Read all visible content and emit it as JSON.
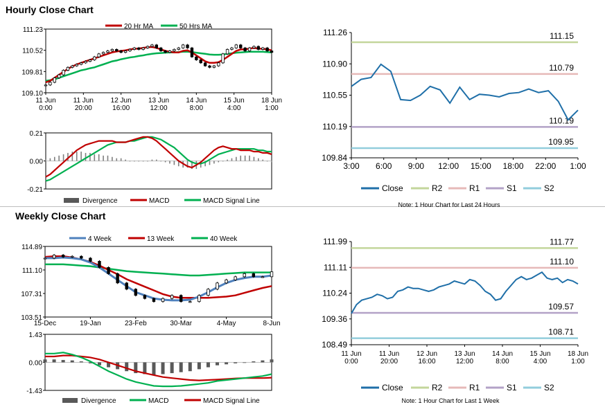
{
  "titles": {
    "hourly": "Hourly Close Chart",
    "weekly": "Weekly Close Chart"
  },
  "colors": {
    "price": "#000000",
    "ma_red": "#c00000",
    "ma_green": "#00b050",
    "ma_blue": "#4f81bd",
    "divergence": "#7f7f7f",
    "close": "#1f6fa8",
    "r2": "#c3d69b",
    "r1": "#e6b9b8",
    "s1": "#b3a2c7",
    "s2": "#92cddc"
  },
  "chart_data": [
    {
      "id": "hourly_price",
      "type": "line",
      "title": "",
      "ylim": [
        109.1,
        111.23
      ],
      "y_ticks": [
        "111.23",
        "110.52",
        "109.81",
        "109.10"
      ],
      "x_ticks": [
        "11 Jun\n0:00",
        "11 Jun\n20:00",
        "12 Jun\n16:00",
        "13 Jun\n12:00",
        "14 Jun\n8:00",
        "15 Jun\n4:00",
        "18 Jun\n1:00"
      ],
      "legend": [
        "20 Hr MA",
        "50 Hrs MA"
      ],
      "series": [
        {
          "name": "Close",
          "values": [
            109.36,
            109.45,
            109.6,
            109.7,
            109.85,
            109.95,
            110.0,
            110.05,
            110.1,
            110.15,
            110.2,
            110.3,
            110.4,
            110.45,
            110.5,
            110.55,
            110.5,
            110.45,
            110.5,
            110.55,
            110.6,
            110.55,
            110.6,
            110.65,
            110.7,
            110.6,
            110.5,
            110.45,
            110.5,
            110.55,
            110.6,
            110.7,
            110.6,
            110.3,
            110.2,
            110.1,
            110.0,
            109.95,
            110.0,
            110.1,
            110.4,
            110.55,
            110.6,
            110.7,
            110.6,
            110.5,
            110.6,
            110.65,
            110.55,
            110.6,
            110.5,
            110.45
          ]
        },
        {
          "name": "20 Hr MA",
          "values": [
            109.45,
            109.5,
            109.6,
            109.7,
            109.8,
            109.9,
            109.98,
            110.05,
            110.1,
            110.15,
            110.2,
            110.25,
            110.3,
            110.35,
            110.4,
            110.45,
            110.48,
            110.5,
            110.52,
            110.55,
            110.57,
            110.58,
            110.6,
            110.62,
            110.63,
            110.6,
            110.55,
            110.5,
            110.47,
            110.45,
            110.45,
            110.5,
            110.52,
            110.45,
            110.35,
            110.25,
            110.15,
            110.1,
            110.1,
            110.12,
            110.2,
            110.3,
            110.4,
            110.5,
            110.55,
            110.55,
            110.58,
            110.6,
            110.58,
            110.57,
            110.55,
            110.52
          ]
        },
        {
          "name": "50 Hrs MA",
          "values": [
            109.5,
            109.52,
            109.55,
            109.6,
            109.65,
            109.7,
            109.75,
            109.8,
            109.85,
            109.88,
            109.92,
            109.95,
            110.0,
            110.05,
            110.1,
            110.15,
            110.18,
            110.22,
            110.25,
            110.28,
            110.3,
            110.33,
            110.35,
            110.38,
            110.4,
            110.42,
            110.43,
            110.44,
            110.45,
            110.45,
            110.46,
            110.47,
            110.47,
            110.46,
            110.44,
            110.42,
            110.4,
            110.38,
            110.37,
            110.37,
            110.38,
            110.4,
            110.42,
            110.44,
            110.45,
            110.46,
            110.47,
            110.47,
            110.47,
            110.47,
            110.46,
            110.45
          ]
        }
      ]
    },
    {
      "id": "hourly_macd",
      "type": "line",
      "ylim": [
        -0.21,
        0.21
      ],
      "y_ticks": [
        "0.21",
        "0.00",
        "-0.21"
      ],
      "legend": [
        "Divergence",
        "MACD",
        "MACD Signal Line"
      ],
      "series": [
        {
          "name": "Divergence",
          "values": [
            0.01,
            0.02,
            0.03,
            0.04,
            0.05,
            0.06,
            0.07,
            0.07,
            0.07,
            0.06,
            0.06,
            0.05,
            0.05,
            0.04,
            0.04,
            0.03,
            0.02,
            0.02,
            0.01,
            0.0,
            0.0,
            0.0,
            0.0,
            0.0,
            0.01,
            0.01,
            0.0,
            -0.01,
            -0.02,
            -0.03,
            -0.04,
            -0.05,
            -0.05,
            -0.06,
            -0.06,
            -0.05,
            -0.04,
            -0.03,
            -0.02,
            -0.01,
            0.0,
            0.01,
            0.02,
            0.03,
            0.04,
            0.04,
            0.04,
            0.03,
            0.02,
            0.01,
            0.0,
            -0.01
          ]
        },
        {
          "name": "MACD",
          "values": [
            -0.12,
            -0.1,
            -0.07,
            -0.04,
            -0.01,
            0.02,
            0.05,
            0.08,
            0.1,
            0.12,
            0.13,
            0.14,
            0.15,
            0.15,
            0.15,
            0.15,
            0.14,
            0.14,
            0.14,
            0.15,
            0.16,
            0.17,
            0.18,
            0.18,
            0.17,
            0.15,
            0.12,
            0.09,
            0.06,
            0.03,
            0.0,
            -0.02,
            -0.04,
            -0.05,
            -0.03,
            -0.01,
            0.02,
            0.05,
            0.08,
            0.1,
            0.11,
            0.1,
            0.09,
            0.09,
            0.08,
            0.08,
            0.08,
            0.07,
            0.07,
            0.06,
            0.06,
            0.05
          ]
        },
        {
          "name": "MACD Signal Line",
          "values": [
            -0.15,
            -0.14,
            -0.12,
            -0.1,
            -0.08,
            -0.06,
            -0.04,
            -0.02,
            0.0,
            0.02,
            0.04,
            0.06,
            0.08,
            0.1,
            0.12,
            0.13,
            0.14,
            0.14,
            0.14,
            0.15,
            0.15,
            0.16,
            0.17,
            0.18,
            0.18,
            0.17,
            0.16,
            0.14,
            0.12,
            0.1,
            0.07,
            0.04,
            0.01,
            -0.01,
            -0.02,
            -0.02,
            -0.01,
            0.01,
            0.03,
            0.05,
            0.06,
            0.07,
            0.08,
            0.09,
            0.09,
            0.09,
            0.09,
            0.09,
            0.08,
            0.08,
            0.07,
            0.07
          ]
        }
      ]
    },
    {
      "id": "hourly_close",
      "type": "line",
      "ylim": [
        109.84,
        111.26
      ],
      "y_ticks": [
        "111.26",
        "110.90",
        "110.55",
        "110.19",
        "109.84"
      ],
      "x_ticks": [
        "3:00",
        "6:00",
        "9:00",
        "12:00",
        "15:00",
        "18:00",
        "22:00",
        "1:00"
      ],
      "levels": [
        {
          "name": "R2",
          "value": 111.15,
          "label": "111.15"
        },
        {
          "name": "R1",
          "value": 110.79,
          "label": "110.79"
        },
        {
          "name": "S1",
          "value": 110.19,
          "label": "110.19"
        },
        {
          "name": "S2",
          "value": 109.95,
          "label": "109.95"
        }
      ],
      "legend": [
        "Close",
        "R2",
        "R1",
        "S1",
        "S2"
      ],
      "note": "Note: 1 Hour Chart for Last 24 Hours",
      "series": [
        {
          "name": "Close",
          "values": [
            110.65,
            110.73,
            110.75,
            110.9,
            110.82,
            110.5,
            110.49,
            110.55,
            110.65,
            110.61,
            110.46,
            110.64,
            110.5,
            110.56,
            110.55,
            110.53,
            110.57,
            110.58,
            110.62,
            110.58,
            110.6,
            110.48,
            110.27,
            110.38
          ]
        }
      ]
    },
    {
      "id": "weekly_price",
      "type": "line",
      "ylim": [
        103.51,
        114.89
      ],
      "y_ticks": [
        "114.89",
        "111.10",
        "107.31",
        "103.51"
      ],
      "x_ticks": [
        "15-Dec",
        "19-Jan",
        "23-Feb",
        "30-Mar",
        "4-May",
        "8-Jun"
      ],
      "legend": [
        "4 Week",
        "13 Week",
        "40 Week"
      ],
      "series": [
        {
          "name": "Close",
          "values": [
            113.0,
            113.5,
            113.2,
            113.3,
            113.0,
            112.5,
            111.5,
            110.5,
            109.0,
            108.0,
            107.0,
            106.5,
            106.0,
            106.5,
            107.0,
            106.0,
            106.0,
            107.0,
            108.0,
            109.0,
            109.5,
            110.0,
            110.5,
            110.0,
            110.0,
            110.8
          ]
        },
        {
          "name": "4 Week",
          "values": [
            113.0,
            113.0,
            113.1,
            113.0,
            112.8,
            112.3,
            111.5,
            110.5,
            109.5,
            108.5,
            107.5,
            107.0,
            106.5,
            106.3,
            106.2,
            106.2,
            106.3,
            106.8,
            107.5,
            108.3,
            109.0,
            109.5,
            109.8,
            110.0,
            110.0,
            110.2
          ]
        },
        {
          "name": "13 Week",
          "values": [
            113.2,
            113.3,
            113.3,
            113.1,
            112.8,
            112.4,
            111.8,
            111.1,
            110.4,
            109.6,
            109.0,
            108.4,
            107.8,
            107.2,
            106.8,
            106.6,
            106.6,
            106.6,
            106.6,
            106.7,
            106.8,
            107.0,
            107.4,
            107.8,
            108.2,
            108.5
          ]
        },
        {
          "name": "40 Week",
          "values": [
            112.0,
            112.0,
            112.0,
            111.9,
            111.8,
            111.7,
            111.5,
            111.3,
            111.1,
            110.9,
            110.8,
            110.7,
            110.6,
            110.5,
            110.4,
            110.3,
            110.2,
            110.2,
            110.3,
            110.4,
            110.5,
            110.6,
            110.7,
            110.7,
            110.7,
            110.7
          ]
        }
      ]
    },
    {
      "id": "weekly_macd",
      "type": "line",
      "ylim": [
        -1.43,
        1.43
      ],
      "y_ticks": [
        "1.43",
        "0.00",
        "-1.43"
      ],
      "legend": [
        "Divergence",
        "MACD",
        "MACD Signal Line"
      ],
      "series": [
        {
          "name": "Divergence",
          "values": [
            0.15,
            0.15,
            0.12,
            0.1,
            0.05,
            -0.05,
            -0.15,
            -0.25,
            -0.35,
            -0.45,
            -0.55,
            -0.6,
            -0.65,
            -0.6,
            -0.55,
            -0.5,
            -0.45,
            -0.35,
            -0.25,
            -0.15,
            -0.1,
            -0.05,
            0.0,
            0.05,
            0.1,
            0.15
          ]
        },
        {
          "name": "MACD",
          "values": [
            0.45,
            0.45,
            0.5,
            0.4,
            0.25,
            0.05,
            -0.2,
            -0.45,
            -0.65,
            -0.85,
            -1.0,
            -1.1,
            -1.2,
            -1.22,
            -1.22,
            -1.2,
            -1.15,
            -1.1,
            -1.05,
            -0.95,
            -0.9,
            -0.85,
            -0.8,
            -0.75,
            -0.7,
            -0.6
          ]
        },
        {
          "name": "MACD Signal Line",
          "values": [
            0.3,
            0.3,
            0.35,
            0.35,
            0.3,
            0.25,
            0.15,
            0.0,
            -0.15,
            -0.3,
            -0.45,
            -0.55,
            -0.65,
            -0.75,
            -0.8,
            -0.85,
            -0.9,
            -0.92,
            -0.9,
            -0.88,
            -0.85,
            -0.82,
            -0.8,
            -0.8,
            -0.8,
            -0.78
          ]
        }
      ]
    },
    {
      "id": "weekly_close",
      "type": "line",
      "ylim": [
        108.49,
        111.99
      ],
      "y_ticks": [
        "111.99",
        "111.11",
        "110.24",
        "109.36",
        "108.49"
      ],
      "x_ticks": [
        "11 Jun\n0:00",
        "11 Jun\n20:00",
        "12 Jun\n16:00",
        "13 Jun\n12:00",
        "14 Jun\n8:00",
        "15 Jun\n4:00",
        "18 Jun\n1:00"
      ],
      "levels": [
        {
          "name": "R2",
          "value": 111.77,
          "label": "111.77"
        },
        {
          "name": "R1",
          "value": 111.1,
          "label": "111.10"
        },
        {
          "name": "S1",
          "value": 109.57,
          "label": "109.57"
        },
        {
          "name": "S2",
          "value": 108.71,
          "label": "108.71"
        }
      ],
      "legend": [
        "Close",
        "R2",
        "R1",
        "S1",
        "S2"
      ],
      "note": "Note: 1 Hour Chart for Last 1 Week",
      "series": [
        {
          "name": "Close",
          "values": [
            109.55,
            109.85,
            110.0,
            110.05,
            110.1,
            110.2,
            110.15,
            110.05,
            110.1,
            110.3,
            110.35,
            110.45,
            110.4,
            110.4,
            110.35,
            110.3,
            110.35,
            110.45,
            110.5,
            110.55,
            110.65,
            110.6,
            110.55,
            110.7,
            110.65,
            110.5,
            110.3,
            110.2,
            110.0,
            110.05,
            110.3,
            110.5,
            110.7,
            110.8,
            110.7,
            110.75,
            110.85,
            110.95,
            110.75,
            110.7,
            110.75,
            110.6,
            110.7,
            110.65,
            110.55
          ]
        }
      ]
    }
  ]
}
